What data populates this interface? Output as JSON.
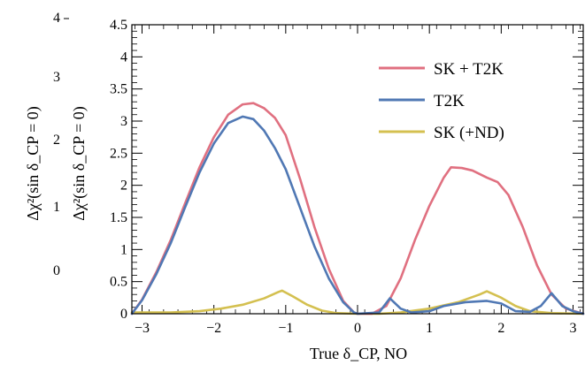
{
  "chart_data": {
    "type": "line",
    "xlabel": "True δ_CP, NO",
    "ylabel": "Δχ²(sin δ_CP = 0)",
    "xlim": [
      -3.14159,
      3.14159
    ],
    "ylim": [
      0,
      4.5
    ],
    "x_ticks": [
      -3,
      -2,
      -1,
      0,
      1,
      2,
      3
    ],
    "y_ticks": [
      "0",
      "0.5",
      "1",
      "1.5",
      "2",
      "2.5",
      "3",
      "3.5",
      "4",
      "4.5"
    ],
    "grid": false,
    "legend_position": "top-right",
    "background_axis": {
      "ylabel": "Δχ²(sin δ_CP = 0)",
      "tick_labels": [
        "0",
        "1",
        "2",
        "3",
        "4"
      ]
    },
    "series": [
      {
        "name": "SK + T2K",
        "color": "#e07080",
        "points": [
          [
            -3.1416,
            0.0
          ],
          [
            -3.0,
            0.22
          ],
          [
            -2.8,
            0.65
          ],
          [
            -2.6,
            1.15
          ],
          [
            -2.4,
            1.72
          ],
          [
            -2.2,
            2.28
          ],
          [
            -2.0,
            2.75
          ],
          [
            -1.8,
            3.1
          ],
          [
            -1.6,
            3.26
          ],
          [
            -1.45,
            3.28
          ],
          [
            -1.3,
            3.2
          ],
          [
            -1.15,
            3.05
          ],
          [
            -1.0,
            2.78
          ],
          [
            -0.8,
            2.1
          ],
          [
            -0.6,
            1.35
          ],
          [
            -0.4,
            0.7
          ],
          [
            -0.2,
            0.2
          ],
          [
            -0.05,
            0.02
          ],
          [
            0.0,
            0.0
          ],
          [
            0.2,
            0.0
          ],
          [
            0.4,
            0.12
          ],
          [
            0.6,
            0.55
          ],
          [
            0.8,
            1.15
          ],
          [
            1.0,
            1.68
          ],
          [
            1.2,
            2.12
          ],
          [
            1.3,
            2.28
          ],
          [
            1.45,
            2.27
          ],
          [
            1.6,
            2.23
          ],
          [
            1.8,
            2.12
          ],
          [
            1.95,
            2.05
          ],
          [
            2.1,
            1.85
          ],
          [
            2.3,
            1.35
          ],
          [
            2.5,
            0.75
          ],
          [
            2.7,
            0.3
          ],
          [
            2.9,
            0.08
          ],
          [
            3.1416,
            0.0
          ]
        ]
      },
      {
        "name": "T2K",
        "color": "#5078b4",
        "points": [
          [
            -3.1416,
            0.0
          ],
          [
            -3.0,
            0.21
          ],
          [
            -2.8,
            0.62
          ],
          [
            -2.6,
            1.1
          ],
          [
            -2.4,
            1.66
          ],
          [
            -2.2,
            2.2
          ],
          [
            -2.0,
            2.65
          ],
          [
            -1.8,
            2.97
          ],
          [
            -1.6,
            3.07
          ],
          [
            -1.45,
            3.03
          ],
          [
            -1.3,
            2.85
          ],
          [
            -1.15,
            2.58
          ],
          [
            -1.0,
            2.25
          ],
          [
            -0.8,
            1.65
          ],
          [
            -0.6,
            1.05
          ],
          [
            -0.4,
            0.55
          ],
          [
            -0.2,
            0.18
          ],
          [
            -0.05,
            0.02
          ],
          [
            0.0,
            0.0
          ],
          [
            0.3,
            0.02
          ],
          [
            0.45,
            0.24
          ],
          [
            0.6,
            0.08
          ],
          [
            0.75,
            0.02
          ],
          [
            1.0,
            0.04
          ],
          [
            1.2,
            0.12
          ],
          [
            1.5,
            0.18
          ],
          [
            1.8,
            0.2
          ],
          [
            2.0,
            0.16
          ],
          [
            2.2,
            0.04
          ],
          [
            2.4,
            0.03
          ],
          [
            2.55,
            0.12
          ],
          [
            2.7,
            0.32
          ],
          [
            2.85,
            0.12
          ],
          [
            3.0,
            0.04
          ],
          [
            3.1416,
            0.0
          ]
        ]
      },
      {
        "name": "SK (+ND)",
        "color": "#d4c050",
        "points": [
          [
            -3.1416,
            0.02
          ],
          [
            -2.6,
            0.02
          ],
          [
            -2.2,
            0.04
          ],
          [
            -1.9,
            0.08
          ],
          [
            -1.6,
            0.14
          ],
          [
            -1.3,
            0.24
          ],
          [
            -1.1,
            0.34
          ],
          [
            -1.05,
            0.36
          ],
          [
            -0.9,
            0.27
          ],
          [
            -0.7,
            0.14
          ],
          [
            -0.5,
            0.05
          ],
          [
            -0.3,
            0.01
          ],
          [
            0.0,
            0.0
          ],
          [
            0.3,
            0.0
          ],
          [
            0.6,
            0.02
          ],
          [
            1.0,
            0.08
          ],
          [
            1.4,
            0.18
          ],
          [
            1.7,
            0.3
          ],
          [
            1.8,
            0.35
          ],
          [
            2.0,
            0.25
          ],
          [
            2.2,
            0.12
          ],
          [
            2.4,
            0.04
          ],
          [
            2.7,
            0.01
          ],
          [
            3.1416,
            0.0
          ]
        ]
      }
    ]
  }
}
